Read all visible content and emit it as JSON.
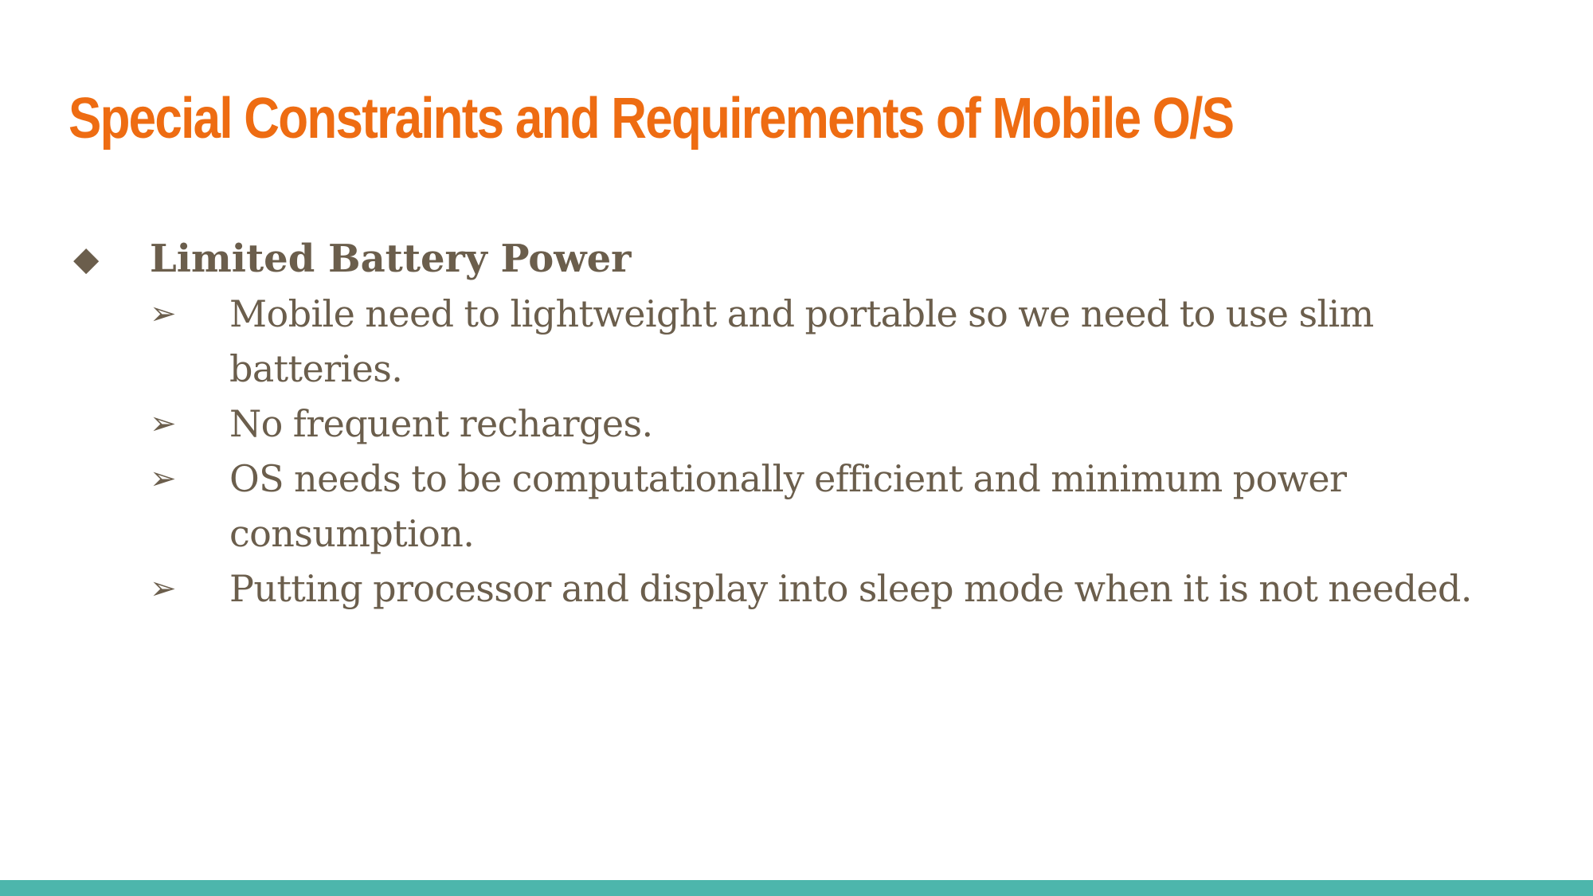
{
  "slide": {
    "title": "Special Constraints and Requirements of Mobile O/S",
    "section": {
      "bullet_icon": "◆",
      "heading": "Limited Battery Power",
      "sub_bullet_icon": "➢",
      "points": [
        {
          "text": "Mobile need to lightweight and portable so we need to use slim batteries."
        },
        {
          "text": "No frequent recharges."
        },
        {
          "text": "OS needs to be computationally efficient and minimum power consumption."
        },
        {
          "text": "Putting processor and display into sleep mode when it is not needed."
        }
      ]
    }
  },
  "colors": {
    "title": "#ee6c12",
    "body_text": "#6b5e4c",
    "footer_bar": "#4db6ac",
    "background": "#ffffff"
  }
}
